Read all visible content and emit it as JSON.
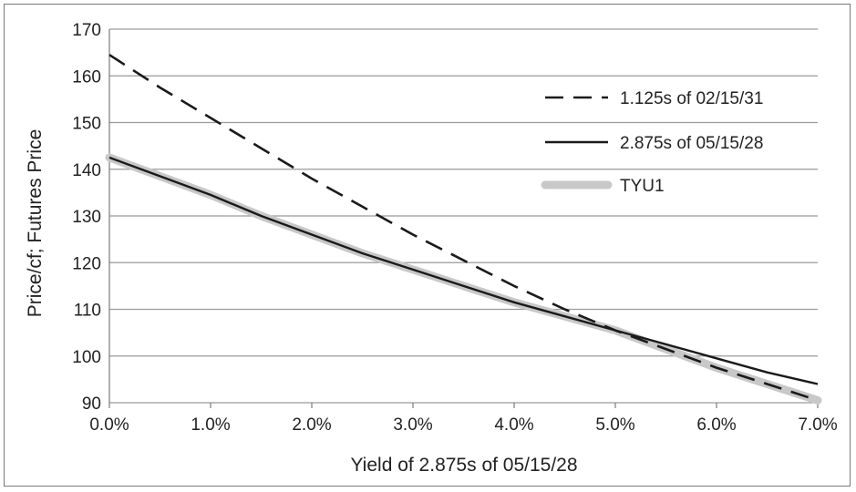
{
  "chart_data": {
    "type": "line",
    "title": "",
    "xlabel": "Yield of 2.875s of 05/15/28",
    "ylabel": "Price/cf; Futures Price",
    "xlim": [
      0.0,
      7.0
    ],
    "ylim": [
      90,
      170
    ],
    "grid": "horizontal",
    "legend_position": "top-right",
    "x_ticks": [
      0,
      1,
      2,
      3,
      4,
      5,
      6,
      7
    ],
    "x_tick_labels": [
      "0.0%",
      "1.0%",
      "2.0%",
      "3.0%",
      "4.0%",
      "5.0%",
      "6.0%",
      "7.0%"
    ],
    "y_ticks": [
      90,
      100,
      110,
      120,
      130,
      140,
      150,
      160,
      170
    ],
    "y_tick_labels": [
      "90",
      "100",
      "110",
      "120",
      "130",
      "140",
      "150",
      "160",
      "170"
    ],
    "series": [
      {
        "name": "1.125s of 02/15/31",
        "style": "dashed",
        "color": "#1a1a1a",
        "x": [
          0,
          0.5,
          1,
          1.5,
          2,
          2.5,
          3,
          3.5,
          4,
          4.5,
          5,
          5.5,
          6,
          6.5,
          7
        ],
        "y": [
          164.5,
          157.5,
          151,
          144.5,
          138,
          132,
          126,
          120.5,
          115,
          110,
          105.5,
          101.5,
          97.5,
          94,
          90.5
        ]
      },
      {
        "name": "2.875s of 05/15/28",
        "style": "solid",
        "color": "#1a1a1a",
        "x": [
          0,
          0.5,
          1,
          1.5,
          2,
          2.5,
          3,
          3.5,
          4,
          4.5,
          5,
          5.5,
          6,
          6.5,
          7
        ],
        "y": [
          142.5,
          138.5,
          134.5,
          130,
          126,
          122,
          118.5,
          115,
          111.5,
          108.5,
          105.5,
          102.5,
          99.5,
          96.5,
          94
        ]
      },
      {
        "name": "TYU1",
        "style": "thick",
        "color": "#c8c8c8",
        "x": [
          0,
          0.5,
          1,
          1.5,
          2,
          2.5,
          3,
          3.5,
          4,
          4.5,
          5,
          5.5,
          6,
          6.5,
          7
        ],
        "y": [
          142.5,
          138.5,
          134.5,
          130,
          126,
          122,
          118.5,
          115,
          111.5,
          108.5,
          105.5,
          101.5,
          97.5,
          94,
          90.5
        ]
      }
    ]
  }
}
